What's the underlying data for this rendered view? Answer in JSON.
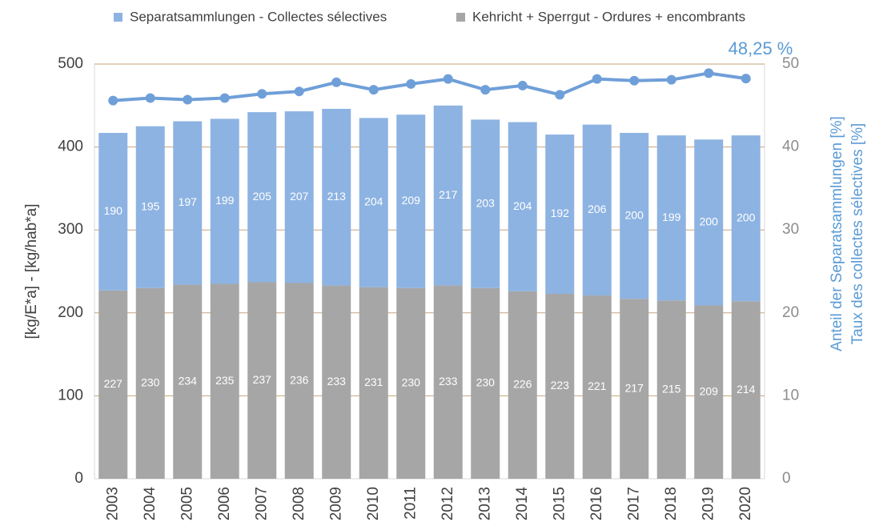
{
  "chart_data": {
    "type": "stacked-bar-line",
    "categories": [
      "2003",
      "2004",
      "2005",
      "2006",
      "2007",
      "2008",
      "2009",
      "2010",
      "2011",
      "2012",
      "2013",
      "2014",
      "2015",
      "2016",
      "2017",
      "2018",
      "2019",
      "2020"
    ],
    "series": [
      {
        "name": "Kehricht + Sperrgut - Ordures + encombrants",
        "color": "#a6a6a6",
        "kind": "bar",
        "values": [
          227,
          230,
          234,
          235,
          237,
          236,
          233,
          231,
          230,
          233,
          230,
          226,
          223,
          221,
          217,
          215,
          209,
          214
        ]
      },
      {
        "name": "Separatsammlungen - Collectes sélectives",
        "color": "#8db3e2",
        "kind": "bar",
        "values": [
          190,
          195,
          197,
          199,
          205,
          207,
          213,
          204,
          209,
          217,
          203,
          204,
          192,
          206,
          200,
          199,
          200,
          200
        ]
      },
      {
        "color": "#6f9fd8",
        "kind": "line",
        "axis": "y2",
        "values": [
          45.6,
          45.9,
          45.7,
          45.9,
          46.4,
          46.7,
          47.8,
          46.9,
          47.6,
          48.2,
          46.9,
          47.4,
          46.3,
          48.2,
          48.0,
          48.1,
          48.9,
          48.25
        ]
      }
    ],
    "legend_order": [
      1,
      0
    ],
    "annotation": "48,25 %",
    "ylabel": "[kg/E*a]  - [kg/hab*a]",
    "y2label": [
      "Anteil der Separatsammlungen  [%]",
      "Taux des collectes sélectives [%]"
    ],
    "ylim": [
      0,
      500
    ],
    "yticks": [
      0,
      100,
      200,
      300,
      400,
      500
    ],
    "y2lim": [
      0,
      50
    ],
    "y2ticks": [
      0,
      10,
      20,
      30,
      40,
      50
    ],
    "grid": true
  }
}
